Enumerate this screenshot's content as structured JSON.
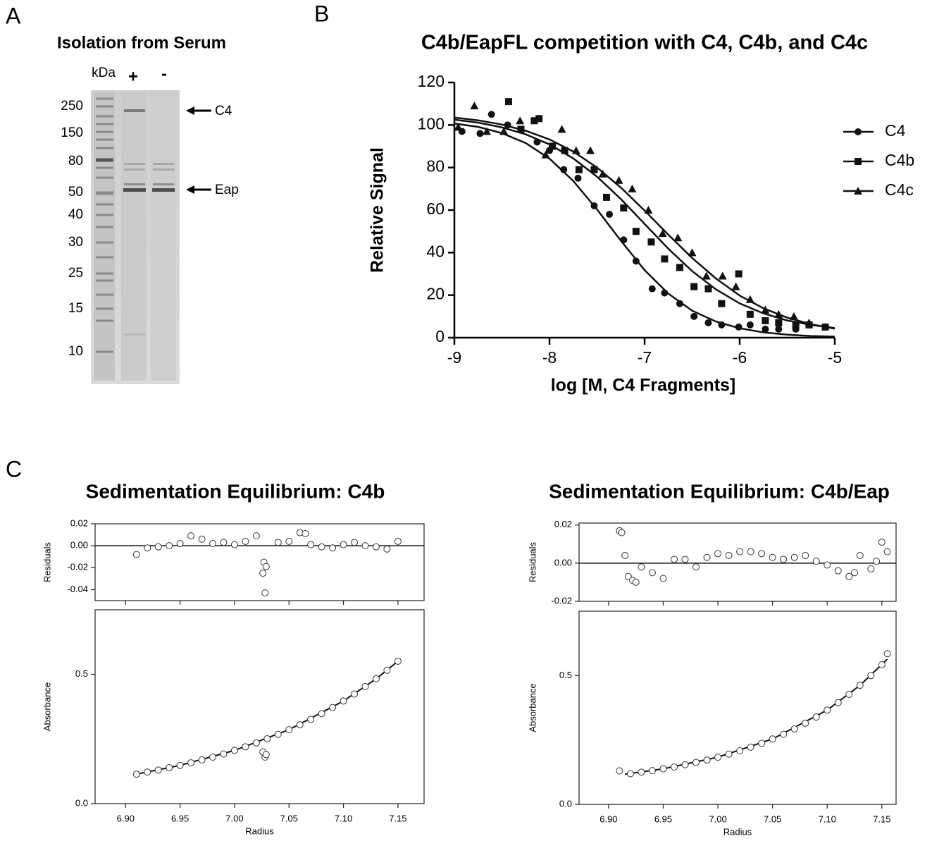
{
  "gel": {
    "panel_label": "A",
    "title": "Isolation from Serum",
    "unit_label": "kDa",
    "lanes": [
      "+",
      "-"
    ],
    "markers": [
      250,
      150,
      80,
      50,
      40,
      30,
      25,
      15,
      10
    ],
    "bands": [
      "C4",
      "Eap"
    ]
  },
  "chart_data": [
    {
      "type": "scatter",
      "panel_label": "B",
      "title": "C4b/EapFL competition with C4, C4b, and  C4c",
      "x_label": "log [M, C4 Fragments]",
      "y_label": "Relative Signal",
      "xlim": [
        -9,
        -5
      ],
      "xticks": [
        -9,
        -8,
        -7,
        -6,
        -5
      ],
      "ylim": [
        0,
        120
      ],
      "yticks": [
        0,
        20,
        40,
        60,
        80,
        100,
        120
      ],
      "legend": "right",
      "fit_x": [
        -9,
        -8.75,
        -8.5,
        -8.25,
        -8,
        -7.75,
        -7.5,
        -7.25,
        -7,
        -6.75,
        -6.5,
        -6.25,
        -6,
        -5.75,
        -5.5,
        -5.25,
        -5
      ],
      "series": [
        {
          "name": "C4",
          "marker": "circle",
          "color": "#111111",
          "x": [
            -8.92,
            -8.73,
            -8.61,
            -8.44,
            -8.13,
            -8.0,
            -7.85,
            -7.7,
            -7.53,
            -7.37,
            -7.22,
            -7.09,
            -6.92,
            -6.79,
            -6.63,
            -6.48,
            -6.33,
            -6.19,
            -6.01,
            -5.89,
            -5.73,
            -5.59,
            -5.41
          ],
          "values": [
            97,
            96,
            105,
            100,
            92,
            88,
            79,
            75,
            62,
            58,
            46,
            36,
            23,
            21,
            16,
            10,
            7,
            6,
            5,
            6,
            4,
            4,
            4
          ],
          "fit_values": [
            100.7,
            99.1,
            96.2,
            91.5,
            84.2,
            73.7,
            60.3,
            45.6,
            31.8,
            20.7,
            12.7,
            7.6,
            4.4,
            2.5,
            1.4,
            0.8,
            0.5
          ]
        },
        {
          "name": "C4b",
          "marker": "square",
          "color": "#111111",
          "x": [
            -8.43,
            -8.3,
            -8.16,
            -8.11,
            -7.97,
            -7.84,
            -7.69,
            -7.53,
            -7.4,
            -7.22,
            -7.09,
            -6.93,
            -6.79,
            -6.63,
            -6.48,
            -6.33,
            -6.19,
            -6.01,
            -5.89,
            -5.73,
            -5.59,
            -5.41,
            -5.27,
            -5.1
          ],
          "values": [
            111,
            98,
            102,
            103,
            90,
            88,
            79,
            79,
            66,
            61,
            50,
            45,
            37,
            33,
            24,
            23,
            16,
            30,
            11,
            8,
            7,
            6,
            6,
            5
          ],
          "fit_values": [
            102.5,
            101.1,
            98.9,
            95.6,
            90.9,
            84.3,
            75.7,
            65.2,
            53.5,
            41.8,
            31.3,
            22.7,
            16.1,
            11.4,
            8.1,
            6.0,
            4.5
          ]
        },
        {
          "name": "C4c",
          "marker": "triangle",
          "color": "#111111",
          "x": [
            -8.96,
            -8.79,
            -8.66,
            -8.48,
            -8.31,
            -8.04,
            -7.87,
            -7.72,
            -7.57,
            -7.44,
            -7.27,
            -7.13,
            -6.96,
            -6.81,
            -6.65,
            -6.5,
            -6.35,
            -6.18,
            -6.04,
            -5.89,
            -5.73,
            -5.59,
            -5.43,
            -5.27
          ],
          "values": [
            99,
            109,
            97,
            97,
            102,
            86,
            98,
            88,
            88,
            77,
            74,
            70,
            60,
            49,
            47,
            40,
            29,
            29,
            24,
            18,
            13,
            11,
            10,
            7
          ],
          "fit_values": [
            103.5,
            102.2,
            100.2,
            97.3,
            93.2,
            87.5,
            80.0,
            70.6,
            59.8,
            48.4,
            37.5,
            27.8,
            19.8,
            13.8,
            9.4,
            6.3,
            4.2
          ]
        }
      ]
    },
    {
      "type": "sedimentation",
      "panel_label": "C",
      "title": "Sedimentation Equilibrium:  C4b",
      "x_label": "Radius",
      "xlim": [
        6.872,
        7.174
      ],
      "xticks": [
        {
          "value": 6.9,
          "label": "6.90"
        },
        6.95,
        {
          "value": 7,
          "label": "7.00"
        },
        7.05,
        {
          "value": 7.1,
          "label": "7.10"
        },
        7.15
      ],
      "residuals": {
        "y_label": "Residuals",
        "ylim": [
          -0.05,
          0.02
        ],
        "yticks": [
          {
            "value": 0.02,
            "label": "0.02"
          },
          {
            "value": 0,
            "label": "0.00"
          },
          {
            "value": -0.02,
            "label": "-0.02"
          },
          {
            "value": -0.04,
            "label": "-0.04"
          }
        ],
        "x": [
          6.91,
          6.92,
          6.93,
          6.94,
          6.95,
          6.96,
          6.97,
          6.98,
          6.99,
          7.0,
          7.01,
          7.02,
          7.026,
          7.027,
          7.028,
          7.029,
          7.04,
          7.05,
          7.06,
          7.065,
          7.07,
          7.08,
          7.09,
          7.1,
          7.11,
          7.12,
          7.13,
          7.14,
          7.15
        ],
        "values": [
          -0.008,
          -0.002,
          -0.001,
          0.0,
          0.002,
          0.009,
          0.006,
          0.002,
          0.003,
          0.001,
          0.004,
          0.009,
          -0.025,
          -0.015,
          -0.043,
          -0.019,
          0.003,
          0.004,
          0.012,
          0.011,
          0.001,
          -0.001,
          -0.002,
          0.001,
          0.003,
          0.0,
          -0.001,
          -0.003,
          0.004
        ]
      },
      "absorbance": {
        "y_label": "Absorbance",
        "ylim": [
          0,
          0.75
        ],
        "yticks": [
          {
            "value": 0,
            "label": "0.0"
          },
          0.5
        ],
        "x": [
          6.91,
          6.92,
          6.93,
          6.94,
          6.95,
          6.96,
          6.97,
          6.98,
          6.99,
          7.0,
          7.01,
          7.02,
          7.026,
          7.028,
          7.029,
          7.03,
          7.04,
          7.05,
          7.06,
          7.07,
          7.08,
          7.09,
          7.1,
          7.11,
          7.12,
          7.13,
          7.14,
          7.15
        ],
        "values": [
          0.114,
          0.122,
          0.13,
          0.139,
          0.148,
          0.158,
          0.169,
          0.18,
          0.192,
          0.206,
          0.22,
          0.235,
          0.2,
          0.18,
          0.19,
          0.251,
          0.268,
          0.286,
          0.305,
          0.326,
          0.348,
          0.372,
          0.397,
          0.424,
          0.453,
          0.483,
          0.516,
          0.551
        ],
        "fit_x": [
          6.91,
          6.95,
          7.0,
          7.05,
          7.1,
          7.13,
          7.15
        ],
        "fit_values": [
          0.114,
          0.148,
          0.206,
          0.286,
          0.397,
          0.483,
          0.551
        ]
      }
    },
    {
      "type": "sedimentation",
      "title": "Sedimentation Equilibrium:  C4b/Eap",
      "x_label": "Radius",
      "xlim": [
        6.873,
        7.163
      ],
      "xticks": [
        {
          "value": 6.9,
          "label": "6.90"
        },
        6.95,
        {
          "value": 7,
          "label": "7.00"
        },
        7.05,
        {
          "value": 7.1,
          "label": "7.10"
        },
        7.15
      ],
      "residuals": {
        "y_label": "Residuals",
        "ylim": [
          -0.02,
          0.021
        ],
        "yticks": [
          {
            "value": 0.02,
            "label": "0.02"
          },
          {
            "value": 0,
            "label": "0.00"
          },
          {
            "value": -0.02,
            "label": "-0.02"
          }
        ],
        "x": [
          6.91,
          6.912,
          6.915,
          6.918,
          6.922,
          6.925,
          6.93,
          6.94,
          6.95,
          6.96,
          6.97,
          6.98,
          6.99,
          7.0,
          7.01,
          7.02,
          7.03,
          7.04,
          7.05,
          7.06,
          7.07,
          7.08,
          7.09,
          7.1,
          7.11,
          7.12,
          7.125,
          7.13,
          7.14,
          7.145,
          7.15,
          7.155
        ],
        "values": [
          0.017,
          0.016,
          0.004,
          -0.007,
          -0.009,
          -0.01,
          -0.002,
          -0.005,
          -0.008,
          0.002,
          0.002,
          -0.002,
          0.003,
          0.005,
          0.004,
          0.006,
          0.006,
          0.005,
          0.003,
          0.002,
          0.003,
          0.004,
          0.001,
          -0.001,
          -0.004,
          -0.007,
          -0.005,
          0.004,
          -0.003,
          0.001,
          0.011,
          0.006
        ]
      },
      "absorbance": {
        "y_label": "Absorbance",
        "ylim": [
          0,
          0.75
        ],
        "yticks": [
          {
            "value": 0,
            "label": "0.0"
          },
          0.5
        ],
        "x": [
          6.91,
          6.92,
          6.93,
          6.94,
          6.95,
          6.96,
          6.97,
          6.98,
          6.99,
          7.0,
          7.01,
          7.02,
          7.03,
          7.04,
          7.05,
          7.06,
          7.07,
          7.08,
          7.09,
          7.1,
          7.11,
          7.12,
          7.13,
          7.14,
          7.15,
          7.155
        ],
        "values": [
          0.13,
          0.119,
          0.125,
          0.131,
          0.138,
          0.145,
          0.154,
          0.163,
          0.172,
          0.183,
          0.195,
          0.208,
          0.222,
          0.237,
          0.254,
          0.272,
          0.293,
          0.315,
          0.339,
          0.366,
          0.395,
          0.427,
          0.462,
          0.5,
          0.542,
          0.585
        ],
        "fit_x": [
          6.915,
          6.95,
          7.0,
          7.05,
          7.1,
          7.13,
          7.155
        ],
        "fit_values": [
          0.117,
          0.138,
          0.183,
          0.254,
          0.366,
          0.462,
          0.564
        ]
      }
    }
  ]
}
